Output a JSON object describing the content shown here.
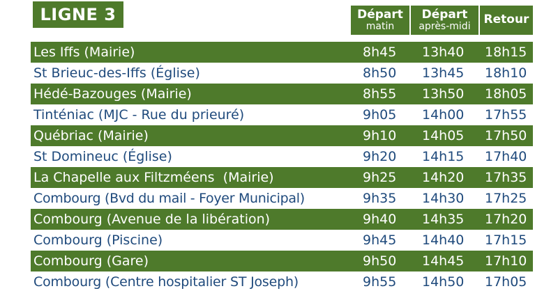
{
  "title": "LIGNE 3",
  "headers": {
    "matin": {
      "main": "Départ",
      "sub": "matin"
    },
    "apres_midi": {
      "main": "Départ",
      "sub": "après-midi"
    },
    "retour": {
      "main": "Retour"
    }
  },
  "colors": {
    "accent": "#4e7a2b",
    "text": "#1f4a7c"
  },
  "rows": [
    {
      "stop": "Les Iffs (Mairie)",
      "matin": "8h45",
      "apres_midi": "13h40",
      "retour": "18h15"
    },
    {
      "stop": "St Brieuc-des-Iffs (Église)",
      "matin": "8h50",
      "apres_midi": "13h45",
      "retour": "18h10"
    },
    {
      "stop": "Hédé-Bazouges (Mairie)",
      "matin": "8h55",
      "apres_midi": "13h50",
      "retour": "18h05"
    },
    {
      "stop": "Tinténiac (MJC - Rue du prieuré)",
      "matin": "9h05",
      "apres_midi": "14h00",
      "retour": "17h55"
    },
    {
      "stop": "Québriac (Mairie)",
      "matin": "9h10",
      "apres_midi": "14h05",
      "retour": "17h50"
    },
    {
      "stop": "St Domineuc (Église)",
      "matin": "9h20",
      "apres_midi": "14h15",
      "retour": "17h40"
    },
    {
      "stop": "La Chapelle aux Filtzméens  (Mairie)",
      "matin": "9h25",
      "apres_midi": "14h20",
      "retour": "17h35"
    },
    {
      "stop": "Combourg (Bvd du mail - Foyer Municipal)",
      "matin": "9h35",
      "apres_midi": "14h30",
      "retour": "17h25"
    },
    {
      "stop": "Combourg (Avenue de la libération)",
      "matin": "9h40",
      "apres_midi": "14h35",
      "retour": "17h20"
    },
    {
      "stop": "Combourg (Piscine)",
      "matin": "9h45",
      "apres_midi": "14h40",
      "retour": "17h15"
    },
    {
      "stop": "Combourg (Gare)",
      "matin": "9h50",
      "apres_midi": "14h45",
      "retour": "17h10"
    },
    {
      "stop": "Combourg (Centre hospitalier ST Joseph)",
      "matin": "9h55",
      "apres_midi": "14h50",
      "retour": "17h05"
    }
  ]
}
